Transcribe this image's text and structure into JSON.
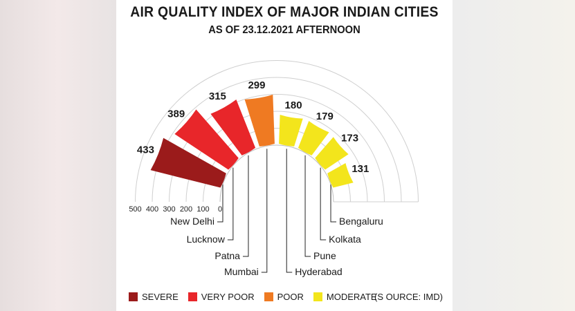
{
  "title": "AIR QUALITY INDEX OF MAJOR INDIAN CITIES",
  "subtitle": "AS OF 23.12.2021 AFTERNOON",
  "source": "(S OURCE: IMD)",
  "legend": [
    {
      "label": "SEVERE",
      "color": "#9b1b1b"
    },
    {
      "label": "VERY POOR",
      "color": "#e8262a"
    },
    {
      "label": "POOR",
      "color": "#ef7a22"
    },
    {
      "label": "MODERATE",
      "color": "#f3e51c"
    }
  ],
  "chart_data": {
    "type": "bar",
    "variant": "radial-semicircle",
    "categories": [
      "New Delhi",
      "Lucknow",
      "Patna",
      "Mumbai",
      "Hyderabad",
      "Pune",
      "Kolkata",
      "Bengaluru"
    ],
    "values": [
      433,
      389,
      315,
      299,
      180,
      179,
      173,
      131
    ],
    "colors": [
      "#9b1b1b",
      "#e8262a",
      "#e8262a",
      "#ef7a22",
      "#f3e51c",
      "#f3e51c",
      "#f3e51c",
      "#f3e51c"
    ],
    "axis_ticks": [
      "500",
      "400",
      "300",
      "200",
      "100",
      "0"
    ],
    "ylim": [
      0,
      500
    ],
    "grid": true
  }
}
